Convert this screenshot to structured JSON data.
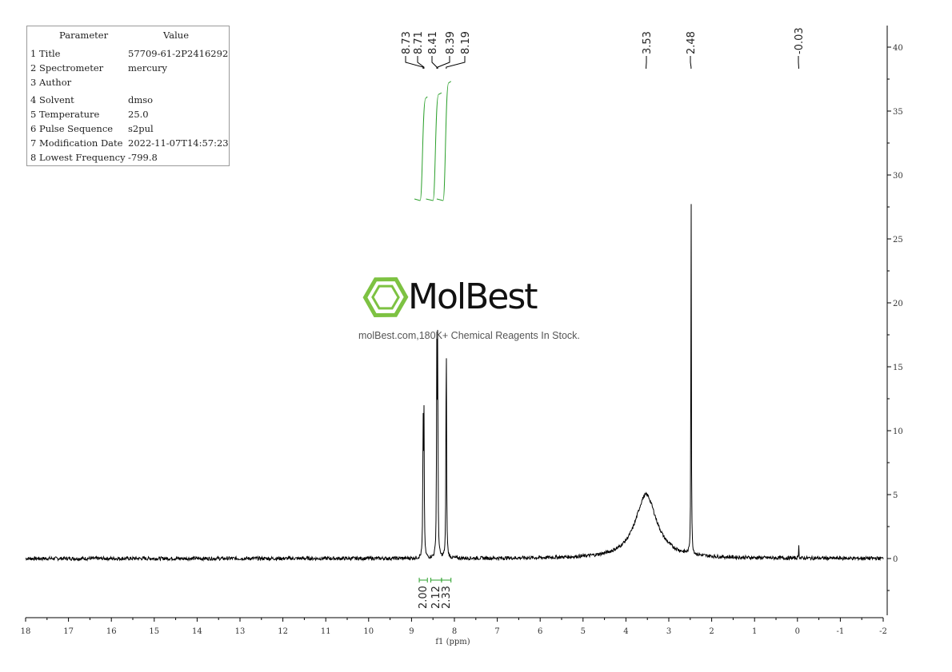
{
  "parameters": {
    "header_param": "Parameter",
    "header_value": "Value",
    "rows": [
      {
        "label": "1 Title",
        "value": "57709-61-2P2416292"
      },
      {
        "label": "2 Spectrometer",
        "value": "mercury"
      },
      {
        "label": "3 Author",
        "value": ""
      },
      {
        "label": "4 Solvent",
        "value": "dmso"
      },
      {
        "label": "5 Temperature",
        "value": "25.0"
      },
      {
        "label": "6 Pulse Sequence",
        "value": "s2pul"
      },
      {
        "label": "7 Modification Date",
        "value": "2022-11-07T14:57:23"
      },
      {
        "label": "8 Lowest Frequency",
        "value": "-799.8"
      }
    ]
  },
  "watermark": {
    "brand": "MolBest",
    "tagline": "molBest.com,180K+ Chemical Reagents In Stock.",
    "brand_color": "#7dc242"
  },
  "chart_data": {
    "type": "line",
    "title": "",
    "xlabel": "f1 (ppm)",
    "ylabel": "",
    "xlim": [
      18,
      -2
    ],
    "ylim": [
      -4.5,
      41.5
    ],
    "x_ticks": [
      18,
      17,
      16,
      15,
      14,
      13,
      12,
      11,
      10,
      9,
      8,
      7,
      6,
      5,
      4,
      3,
      2,
      1,
      0,
      -1,
      -2
    ],
    "y_ticks": [
      0,
      5,
      10,
      15,
      20,
      25,
      30,
      35,
      40
    ],
    "grid": false,
    "series": [
      {
        "peaks": [
          {
            "ppm": 8.73,
            "height": 10.2,
            "width": 0.008
          },
          {
            "ppm": 8.71,
            "height": 10.8,
            "width": 0.008
          },
          {
            "ppm": 8.41,
            "height": 15.6,
            "width": 0.008
          },
          {
            "ppm": 8.39,
            "height": 16.0,
            "width": 0.008
          },
          {
            "ppm": 8.19,
            "height": 18.6,
            "width": 0.008
          },
          {
            "ppm": 3.53,
            "height": 5.0,
            "width": 0.3
          },
          {
            "ppm": 2.48,
            "height": 31.7,
            "width": 0.006
          },
          {
            "ppm": -0.03,
            "height": 1.0,
            "width": 0.006
          }
        ]
      }
    ],
    "peak_labels": [
      "8.73",
      "8.71",
      "8.41",
      "8.39",
      "8.19",
      "3.53",
      "2.48",
      "-0.03"
    ],
    "integrals": [
      {
        "from": 8.82,
        "to": 8.63,
        "value": "2.00",
        "start": 28.0,
        "end": 36.0
      },
      {
        "from": 8.55,
        "to": 8.3,
        "value": "2.12",
        "start": 28.0,
        "end": 36.3
      },
      {
        "from": 8.3,
        "to": 8.08,
        "value": "2.33",
        "start": 28.0,
        "end": 37.2
      }
    ],
    "colors": {
      "spectrum": "#000000",
      "integral": "#2ca02c",
      "axis": "#000000"
    }
  }
}
